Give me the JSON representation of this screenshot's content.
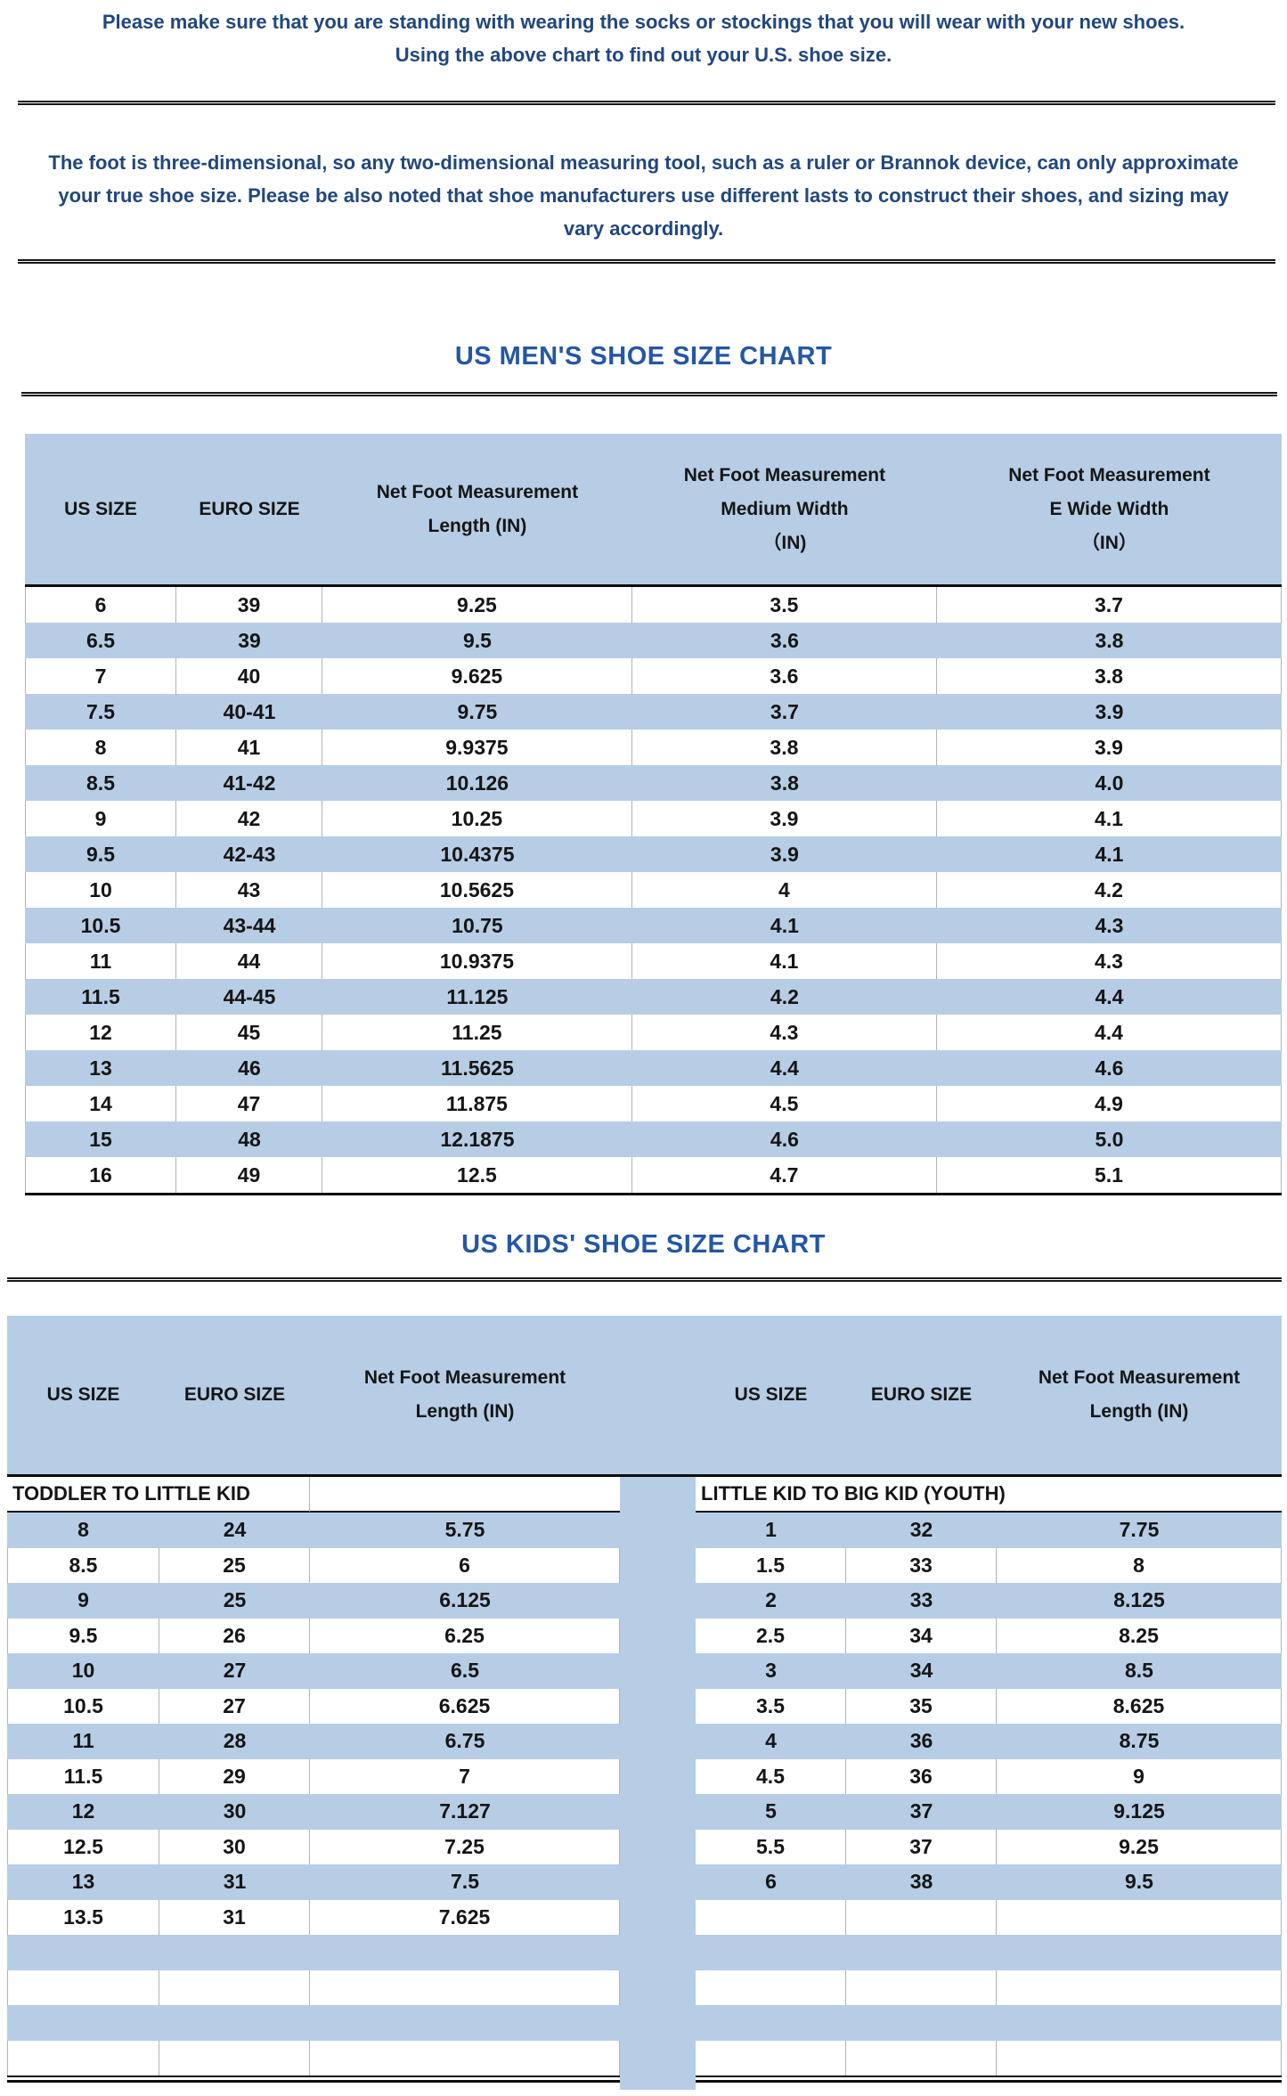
{
  "intro": {
    "line1": "Please make sure that you are standing with wearing the socks or stockings that you will wear with your new shoes.",
    "line2": "Using the above chart to find out your U.S. shoe size."
  },
  "note": {
    "text": "The foot is three-dimensional, so any two-dimensional measuring tool, such as a ruler or Brannok device, can only approximate your true shoe size. Please be also noted that shoe manufacturers use different lasts to construct their shoes, and sizing may vary accordingly."
  },
  "mens": {
    "title": "US MEN'S SHOE SIZE CHART",
    "columns": [
      "US SIZE",
      "EURO SIZE",
      "Net Foot Measurement\nLength (IN)",
      "Net Foot Measurement\nMedium Width\n（IN)",
      "Net Foot Measurement\nE Wide Width\n（IN）"
    ],
    "rows": [
      [
        "6",
        "39",
        "9.25",
        "3.5",
        "3.7"
      ],
      [
        "6.5",
        "39",
        "9.5",
        "3.6",
        "3.8"
      ],
      [
        "7",
        "40",
        "9.625",
        "3.6",
        "3.8"
      ],
      [
        "7.5",
        "40-41",
        "9.75",
        "3.7",
        "3.9"
      ],
      [
        "8",
        "41",
        "9.9375",
        "3.8",
        "3.9"
      ],
      [
        "8.5",
        "41-42",
        "10.126",
        "3.8",
        "4.0"
      ],
      [
        "9",
        "42",
        "10.25",
        "3.9",
        "4.1"
      ],
      [
        "9.5",
        "42-43",
        "10.4375",
        "3.9",
        "4.1"
      ],
      [
        "10",
        "43",
        "10.5625",
        "4",
        "4.2"
      ],
      [
        "10.5",
        "43-44",
        "10.75",
        "4.1",
        "4.3"
      ],
      [
        "11",
        "44",
        "10.9375",
        "4.1",
        "4.3"
      ],
      [
        "11.5",
        "44-45",
        "11.125",
        "4.2",
        "4.4"
      ],
      [
        "12",
        "45",
        "11.25",
        "4.3",
        "4.4"
      ],
      [
        "13",
        "46",
        "11.5625",
        "4.4",
        "4.6"
      ],
      [
        "14",
        "47",
        "11.875",
        "4.5",
        "4.9"
      ],
      [
        "15",
        "48",
        "12.1875",
        "4.6",
        "5.0"
      ],
      [
        "16",
        "49",
        "12.5",
        "4.7",
        "5.1"
      ]
    ]
  },
  "kids": {
    "title": "US KIDS' SHOE SIZE CHART",
    "left_columns": [
      "US SIZE",
      "EURO SIZE",
      "Net Foot Measurement\nLength (IN)"
    ],
    "right_columns": [
      "US SIZE",
      "EURO SIZE",
      "Net Foot Measurement\nLength (IN)"
    ],
    "left_section_label": "TODDLER TO LITTLE KID",
    "right_section_label": "LITTLE KID TO BIG KID (YOUTH)",
    "rows": [
      {
        "l": [
          "8",
          "24",
          "5.75"
        ],
        "r": [
          "1",
          "32",
          "7.75"
        ]
      },
      {
        "l": [
          "8.5",
          "25",
          "6"
        ],
        "r": [
          "1.5",
          "33",
          "8"
        ]
      },
      {
        "l": [
          "9",
          "25",
          "6.125"
        ],
        "r": [
          "2",
          "33",
          "8.125"
        ]
      },
      {
        "l": [
          "9.5",
          "26",
          "6.25"
        ],
        "r": [
          "2.5",
          "34",
          "8.25"
        ]
      },
      {
        "l": [
          "10",
          "27",
          "6.5"
        ],
        "r": [
          "3",
          "34",
          "8.5"
        ]
      },
      {
        "l": [
          "10.5",
          "27",
          "6.625"
        ],
        "r": [
          "3.5",
          "35",
          "8.625"
        ]
      },
      {
        "l": [
          "11",
          "28",
          "6.75"
        ],
        "r": [
          "4",
          "36",
          "8.75"
        ]
      },
      {
        "l": [
          "11.5",
          "29",
          "7"
        ],
        "r": [
          "4.5",
          "36",
          "9"
        ]
      },
      {
        "l": [
          "12",
          "30",
          "7.127"
        ],
        "r": [
          "5",
          "37",
          "9.125"
        ]
      },
      {
        "l": [
          "12.5",
          "30",
          "7.25"
        ],
        "r": [
          "5.5",
          "37",
          "9.25"
        ]
      },
      {
        "l": [
          "13",
          "31",
          "7.5"
        ],
        "r": [
          "6",
          "38",
          "9.5"
        ]
      },
      {
        "l": [
          "13.5",
          "31",
          "7.625"
        ],
        "r": [
          "",
          "",
          ""
        ]
      },
      {
        "l": [
          "",
          "",
          ""
        ],
        "r": [
          "",
          "",
          ""
        ]
      },
      {
        "l": [
          "",
          "",
          ""
        ],
        "r": [
          "",
          "",
          ""
        ]
      },
      {
        "l": [
          "",
          "",
          ""
        ],
        "r": [
          "",
          "",
          ""
        ]
      },
      {
        "l": [
          "",
          "",
          ""
        ],
        "r": [
          "",
          "",
          ""
        ]
      }
    ]
  },
  "colors": {
    "band_blue": "#b7cde6",
    "title_blue": "#2457a5",
    "paragraph_blue": "#21477f"
  }
}
